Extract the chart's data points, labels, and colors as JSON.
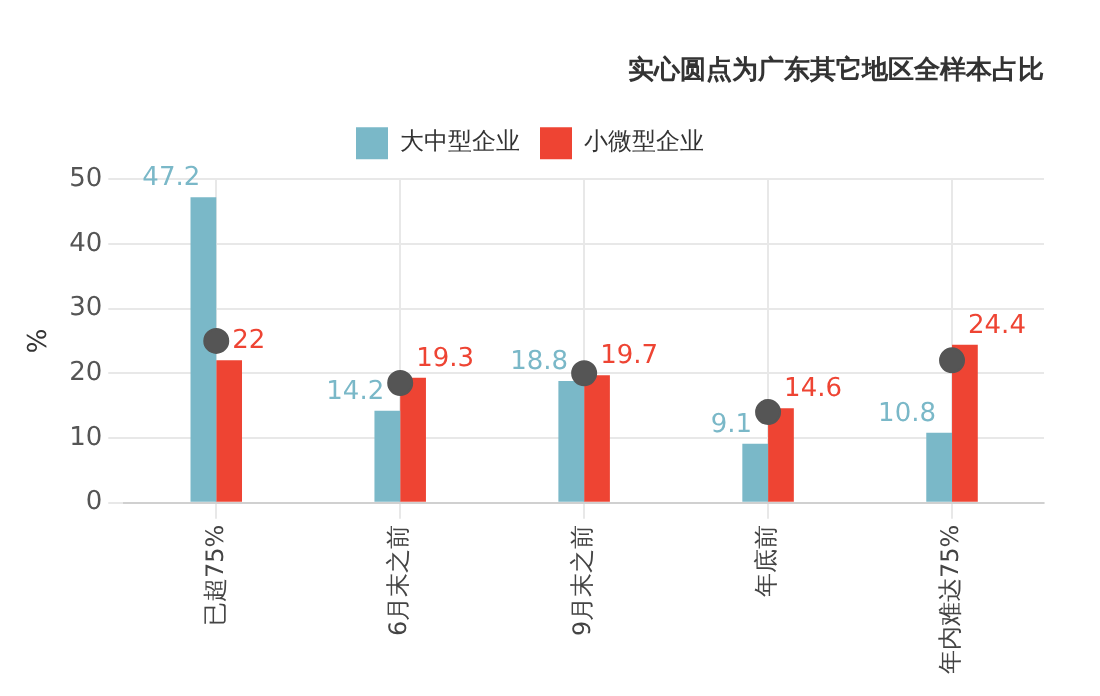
{
  "chart_data": {
    "type": "bar",
    "title": "实心圆点为广东其它地区全样本占比",
    "ylabel": "%",
    "categories": [
      "已超75%",
      "6月末之前",
      "9月末之前",
      "年底前",
      "年内难达75%"
    ],
    "series": [
      {
        "name": "大中型企业",
        "color": "#7ab8c8",
        "values": [
          47.2,
          14.2,
          18.8,
          9.1,
          10.8
        ],
        "value_labels": [
          "47.2",
          "14.2",
          "18.8",
          "9.1",
          "10.8"
        ]
      },
      {
        "name": "小微型企业",
        "color": "#ee4433",
        "values": [
          22,
          19.3,
          19.7,
          14.6,
          24.4
        ],
        "value_labels": [
          "22",
          "19.3",
          "19.7",
          "14.6",
          "24.4"
        ]
      },
      {
        "type": "scatter",
        "color": "#555555",
        "x": [
          "已超75%",
          "6月末之前",
          "9月末之前",
          "年底前",
          "年内难达75%"
        ],
        "values": [
          25,
          18.5,
          20,
          14,
          22
        ]
      }
    ],
    "ylim": [
      0,
      50
    ],
    "yticks": [
      0,
      10,
      20,
      30,
      40,
      50
    ],
    "grid": true,
    "legend": "top",
    "marker": "circle"
  }
}
